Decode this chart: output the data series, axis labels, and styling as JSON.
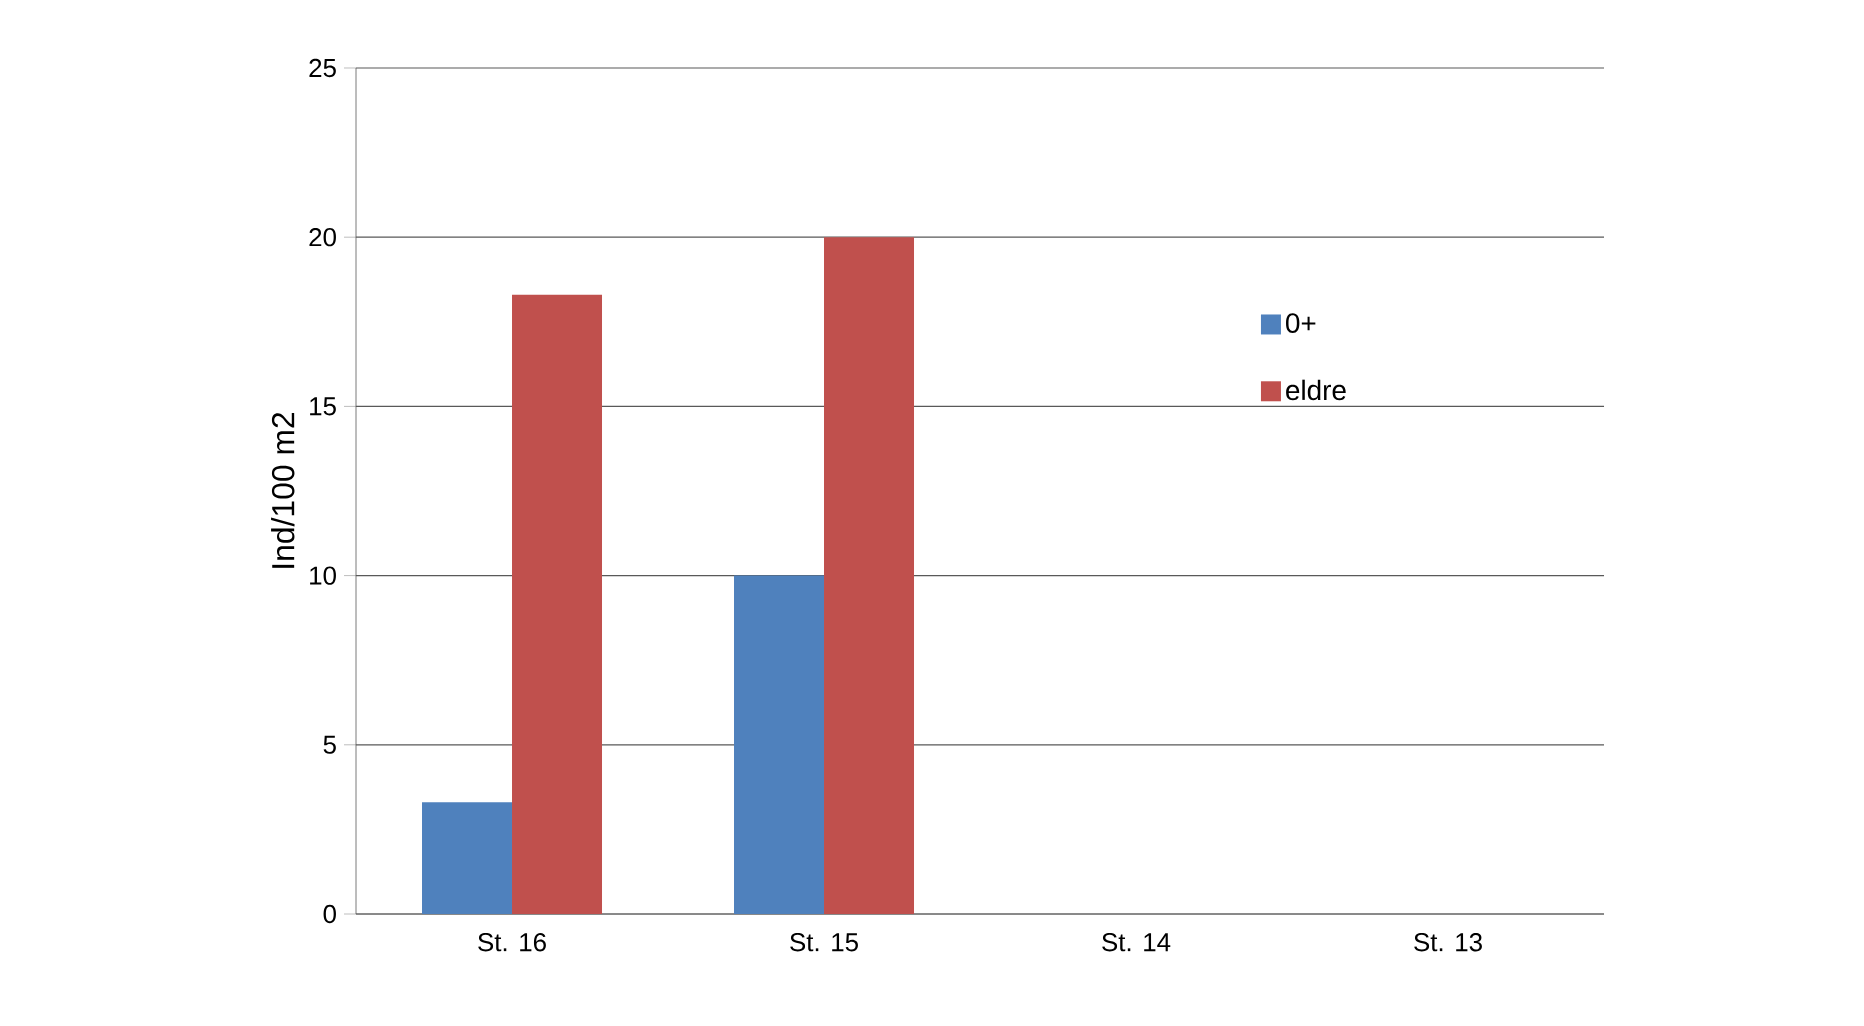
{
  "chart_data": {
    "type": "bar",
    "ylabel": "Ind/100 m2",
    "categories": [
      "St. 16",
      "St. 15",
      "St. 14",
      "St. 13"
    ],
    "series": [
      {
        "name": "0+",
        "color": "#4f81bd",
        "values": [
          3.3,
          10,
          0,
          0
        ]
      },
      {
        "name": "eldre",
        "color": "#c0504d",
        "values": [
          18.3,
          20,
          0,
          0
        ]
      }
    ],
    "ylim": [
      0,
      25
    ],
    "yticks": [
      0,
      5,
      10,
      15,
      20,
      25
    ],
    "grid": "y",
    "legend": "right"
  }
}
